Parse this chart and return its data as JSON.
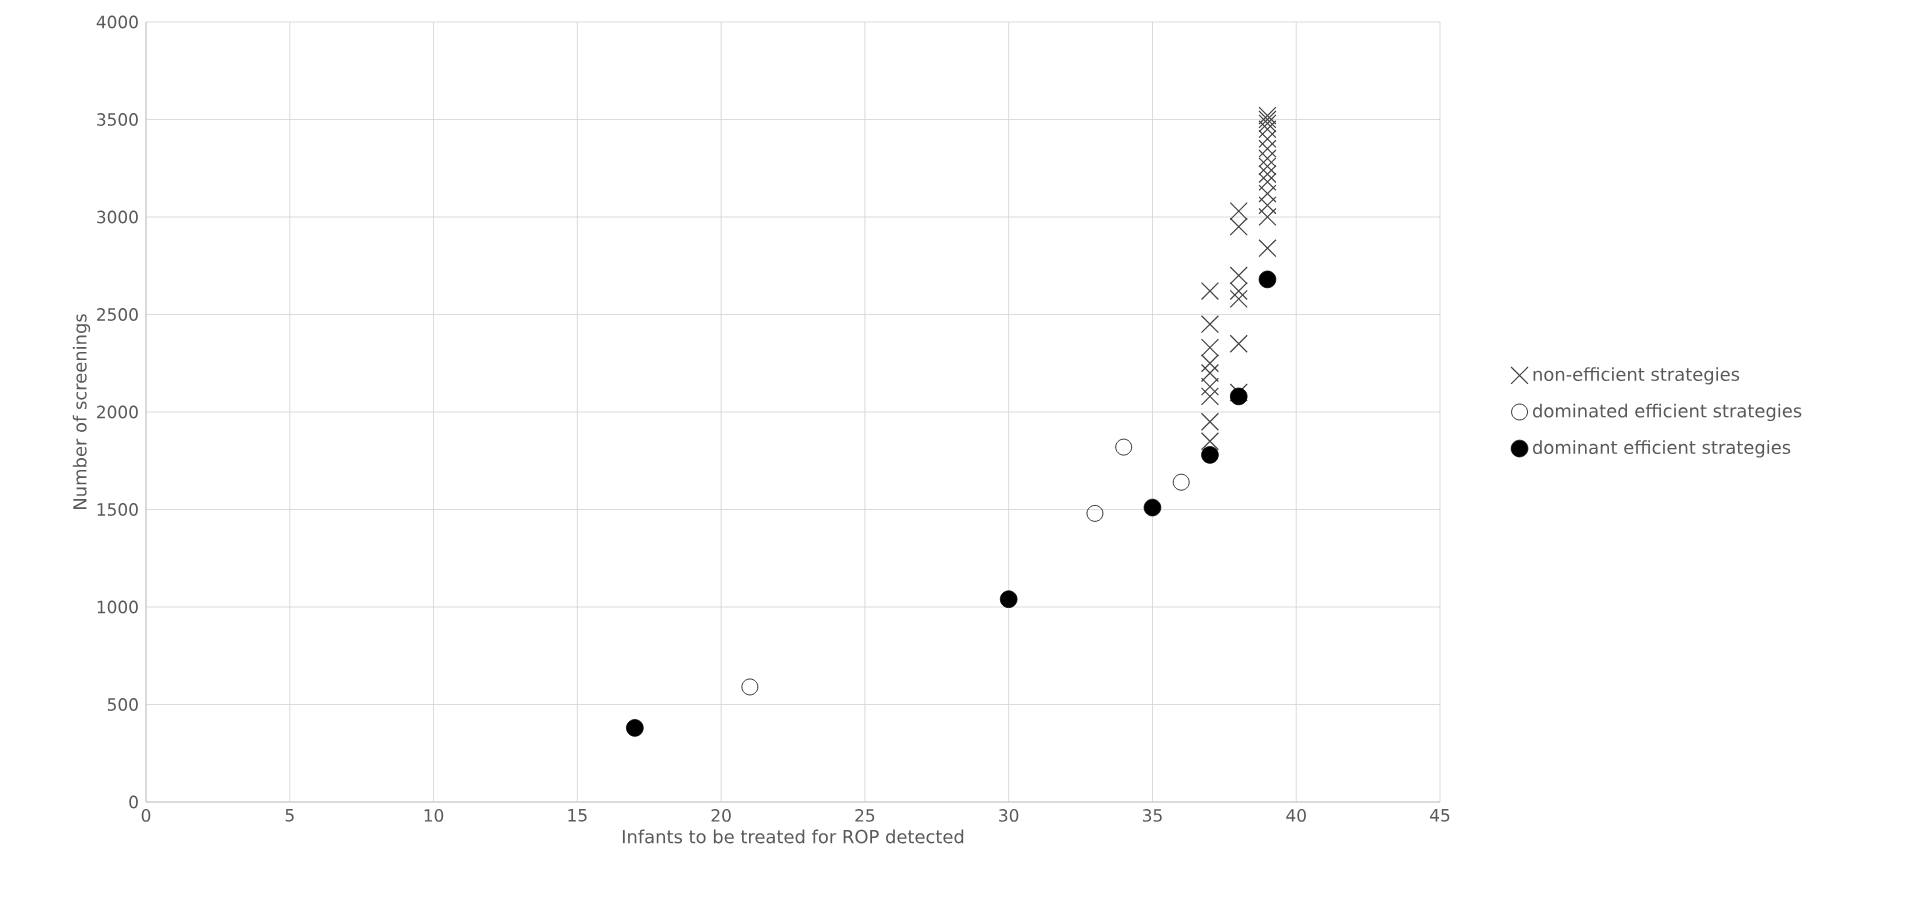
{
  "chart_data": {
    "type": "scatter",
    "xlabel": "Infants to be treated for ROP detected",
    "ylabel": "Number of screenings",
    "xlim": [
      0,
      45
    ],
    "xticks": [
      0,
      5,
      10,
      15,
      20,
      25,
      30,
      35,
      40,
      45
    ],
    "ylim": [
      0,
      4000
    ],
    "yticks": [
      0,
      500,
      1000,
      1500,
      2000,
      2500,
      3000,
      3500,
      4000
    ],
    "grid": true,
    "legend": "right",
    "series": [
      {
        "name": "non-efficient strategies",
        "color": "#404040",
        "marker": "cross",
        "x": [
          37,
          37,
          37,
          37,
          37,
          37,
          37,
          37,
          37,
          38,
          38,
          38,
          38,
          38,
          38,
          38,
          39,
          39,
          39,
          39,
          39,
          39,
          39,
          39,
          39,
          39,
          39,
          39,
          39,
          39
        ],
        "values": [
          1850,
          1950,
          2080,
          2130,
          2200,
          2250,
          2330,
          2450,
          2620,
          2100,
          2350,
          2580,
          2620,
          2700,
          2950,
          3030,
          2840,
          3000,
          3060,
          3120,
          3180,
          3220,
          3260,
          3300,
          3350,
          3400,
          3450,
          3480,
          3500,
          3520
        ]
      },
      {
        "name": "dominated efficient strategies",
        "color": "#000000",
        "marker": "open circle",
        "x": [
          21,
          33,
          34,
          36
        ],
        "values": [
          590,
          1480,
          1820,
          1640
        ]
      },
      {
        "name": "dominant efficient strategies",
        "color": "#000000",
        "marker": "circle",
        "x": [
          17,
          30,
          35,
          37,
          38,
          39
        ],
        "values": [
          380,
          1040,
          1510,
          1780,
          2080,
          2680
        ]
      }
    ]
  }
}
